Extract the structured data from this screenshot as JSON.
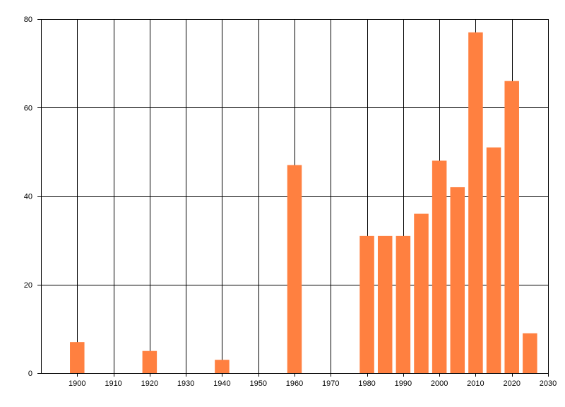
{
  "chart_data": {
    "type": "bar",
    "x": [
      1900,
      1920,
      1940,
      1960,
      1980,
      1985,
      1990,
      1995,
      2000,
      2005,
      2010,
      2015,
      2020,
      2025
    ],
    "values": [
      7,
      5,
      3,
      47,
      31,
      31,
      31,
      36,
      48,
      42,
      77,
      51,
      66,
      9
    ],
    "bar_width_years": 4,
    "title": "",
    "xlabel": "",
    "ylabel": "",
    "xlim": [
      1890,
      2030
    ],
    "ylim": [
      0,
      80
    ],
    "x_ticks": [
      1900,
      1910,
      1920,
      1930,
      1940,
      1950,
      1960,
      1970,
      1980,
      1990,
      2000,
      2010,
      2020,
      2030
    ],
    "y_ticks": [
      0,
      20,
      40,
      60,
      80
    ],
    "grid": true,
    "legend": "none",
    "colors": {
      "bar": "#ff8040",
      "grid": "#000000",
      "axis": "#000000",
      "background": "#ffffff"
    }
  }
}
